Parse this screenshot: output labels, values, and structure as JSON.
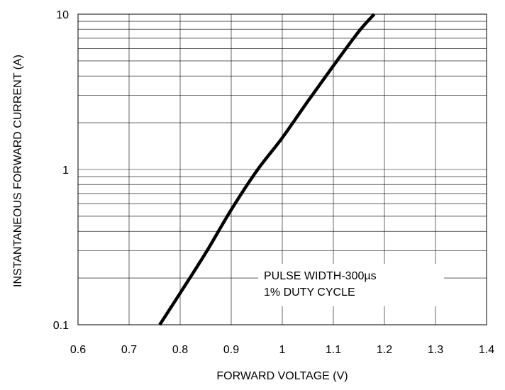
{
  "chart_data": {
    "type": "line",
    "title": "",
    "xlabel": "FORWARD VOLTAGE (V)",
    "ylabel": "INSTANTANEOUS FORWARD CURRENT (A)",
    "xlim": [
      0.6,
      1.4
    ],
    "ylim": [
      0.1,
      10
    ],
    "yscale": "log",
    "grid": true,
    "x_ticks": [
      0.6,
      0.7,
      0.8,
      0.9,
      1.0,
      1.1,
      1.2,
      1.3,
      1.4
    ],
    "x_tick_labels": [
      "0.6",
      "0.7",
      "0.8",
      "0.9",
      "1",
      "1.1",
      "1.2",
      "1.3",
      "1.4"
    ],
    "y_ticks": [
      0.1,
      1,
      10
    ],
    "y_tick_labels": [
      "0.1",
      "1",
      "10"
    ],
    "series": [
      {
        "color": "#000000",
        "x": [
          0.76,
          0.8,
          0.85,
          0.9,
          0.95,
          1.0,
          1.05,
          1.1,
          1.15,
          1.18
        ],
        "y": [
          0.1,
          0.16,
          0.29,
          0.55,
          0.98,
          1.6,
          2.75,
          4.65,
          7.75,
          10.0
        ]
      }
    ],
    "annotations": [
      "PULSE WIDTH-300µs",
      "1% DUTY CYCLE"
    ]
  }
}
